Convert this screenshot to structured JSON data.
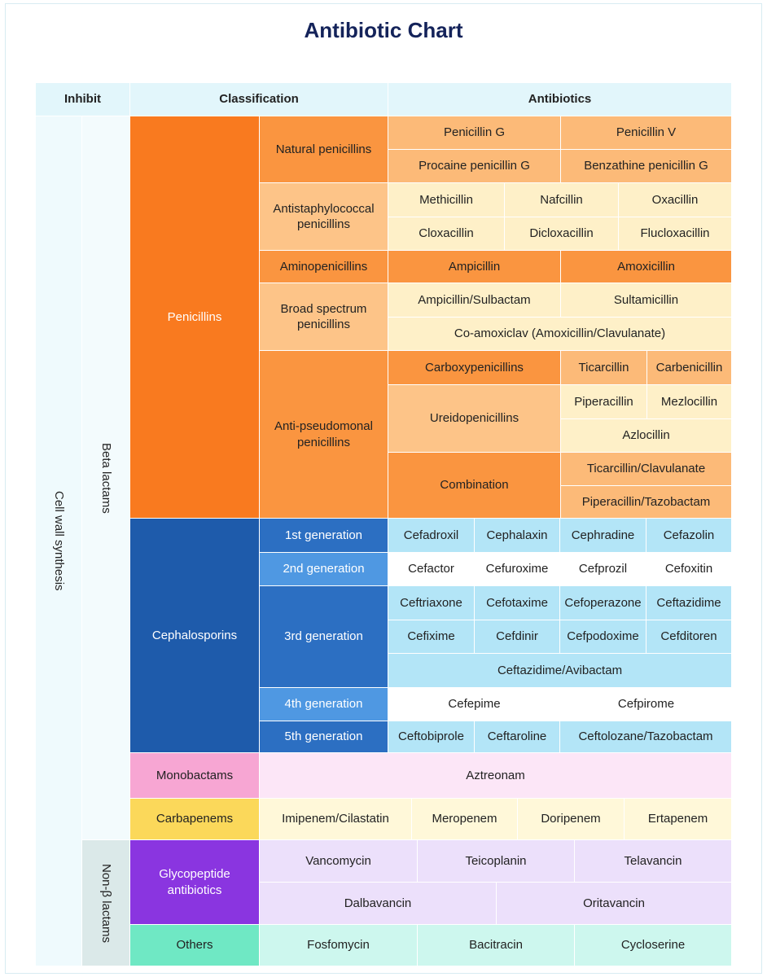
{
  "title": "Antibiotic Chart",
  "header": {
    "inhibit": "Inhibit",
    "classification": "Classification",
    "antibiotics": "Antibiotics"
  },
  "inhibit": "Cell wall synthesis",
  "groups": {
    "beta": "Beta lactams",
    "non_beta": "Non-β lactams"
  },
  "penicillins": {
    "label": "Penicillins",
    "natural": {
      "label": "Natural penicillins",
      "drugs": [
        "Penicillin G",
        "Penicillin V",
        "Procaine penicillin G",
        "Benzathine penicillin G"
      ]
    },
    "antistaph": {
      "label": "Antistaphylococcal penicillins",
      "drugs": [
        "Methicillin",
        "Nafcillin",
        "Oxacillin",
        "Cloxacillin",
        "Dicloxacillin",
        "Flucloxacillin"
      ]
    },
    "amino": {
      "label": "Aminopenicillins",
      "drugs": [
        "Ampicillin",
        "Amoxicillin"
      ]
    },
    "broad": {
      "label": "Broad spectrum penicillins",
      "drugs": [
        "Ampicillin/Sulbactam",
        "Sultamicillin",
        "Co-amoxiclav (Amoxicillin/Clavulanate)"
      ]
    },
    "antipseudo": {
      "label": "Anti-pseudomonal penicillins",
      "carboxy": {
        "label": "Carboxypenicillins",
        "drugs": [
          "Ticarcillin",
          "Carbenicillin"
        ]
      },
      "ureido": {
        "label": "Ureidopenicillins",
        "drugs": [
          "Piperacillin",
          "Mezlocillin",
          "Azlocillin"
        ]
      },
      "combination": {
        "label": "Combination",
        "drugs": [
          "Ticarcillin/Clavulanate",
          "Piperacillin/Tazobactam"
        ]
      }
    }
  },
  "cephalosporins": {
    "label": "Cephalosporins",
    "gen1": {
      "label": "1st generation",
      "drugs": [
        "Cefadroxil",
        "Cephalaxin",
        "Cephradine",
        "Cefazolin"
      ]
    },
    "gen2": {
      "label": "2nd generation",
      "drugs": [
        "Cefactor",
        "Cefuroxime",
        "Cefprozil",
        "Cefoxitin"
      ]
    },
    "gen3": {
      "label": "3rd generation",
      "drugs": [
        "Ceftriaxone",
        "Cefotaxime",
        "Cefoperazone",
        "Ceftazidime",
        "Cefixime",
        "Cefdinir",
        "Cefpodoxime",
        "Cefditoren",
        "Ceftazidime/Avibactam"
      ]
    },
    "gen4": {
      "label": "4th generation",
      "drugs": [
        "Cefepime",
        "Cefpirome"
      ]
    },
    "gen5": {
      "label": "5th generation",
      "drugs": [
        "Ceftobiprole",
        "Ceftaroline",
        "Ceftolozane/Tazobactam"
      ]
    }
  },
  "monobactams": {
    "label": "Monobactams",
    "drugs": [
      "Aztreonam"
    ]
  },
  "carbapenems": {
    "label": "Carbapenems",
    "drugs": [
      "Imipenem/Cilastatin",
      "Meropenem",
      "Doripenem",
      "Ertapenem"
    ]
  },
  "glycopeptides": {
    "label": "Glycopeptide antibiotics",
    "drugs": [
      "Vancomycin",
      "Teicoplanin",
      "Telavancin",
      "Dalbavancin",
      "Oritavancin"
    ]
  },
  "others": {
    "label": "Others",
    "drugs": [
      "Fosfomycin",
      "Bacitracin",
      "Cycloserine"
    ]
  }
}
